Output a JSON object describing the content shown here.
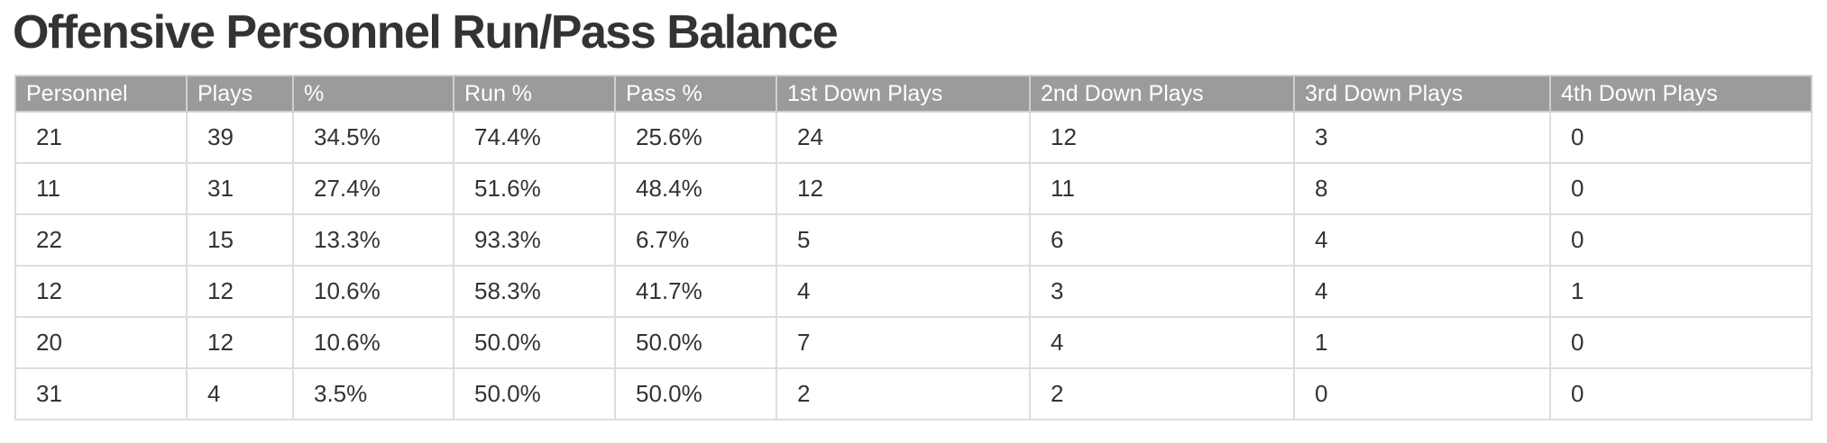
{
  "page": {
    "title": "Offensive Personnel Run/Pass Balance"
  },
  "table": {
    "headers": [
      "Personnel",
      "Plays",
      "%",
      "Run %",
      "Pass %",
      "1st Down Plays",
      "2nd Down Plays",
      "3rd Down Plays",
      "4th Down Plays"
    ],
    "rows": [
      [
        "21",
        "39",
        "34.5%",
        "74.4%",
        "25.6%",
        "24",
        "12",
        "3",
        "0"
      ],
      [
        "11",
        "31",
        "27.4%",
        "51.6%",
        "48.4%",
        "12",
        "11",
        "8",
        "0"
      ],
      [
        "22",
        "15",
        "13.3%",
        "93.3%",
        "6.7%",
        "5",
        "6",
        "4",
        "0"
      ],
      [
        "12",
        "12",
        "10.6%",
        "58.3%",
        "41.7%",
        "4",
        "3",
        "4",
        "1"
      ],
      [
        "20",
        "12",
        "10.6%",
        "50.0%",
        "50.0%",
        "7",
        "4",
        "1",
        "0"
      ],
      [
        "31",
        "4",
        "3.5%",
        "50.0%",
        "50.0%",
        "2",
        "2",
        "0",
        "0"
      ]
    ]
  },
  "colors": {
    "header_bg": "#9b9b9b",
    "header_text": "#ffffff",
    "body_text": "#333333",
    "grid": "#dddddd"
  }
}
